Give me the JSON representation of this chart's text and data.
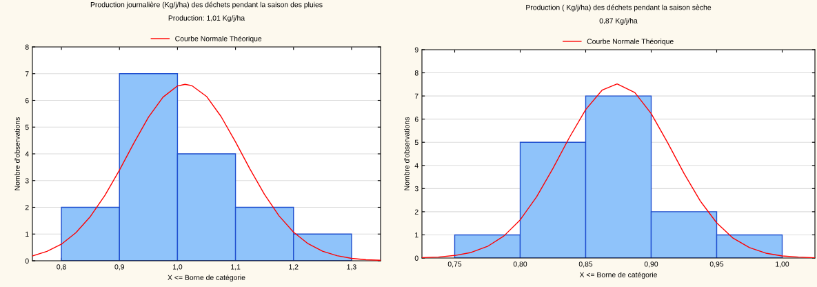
{
  "chart_data": [
    {
      "type": "histogram",
      "title": "Production journalière (Kg/j/ha) des déchets pendant la saison des pluies",
      "subtitle": "Production: 1,01 Kg/j/ha",
      "xlabel": "X <= Borne de catégorie",
      "ylabel": "Nombre d'observations",
      "bins": [
        0.8,
        0.9,
        1.0,
        1.1,
        1.2,
        1.3
      ],
      "values": [
        2,
        7,
        4,
        2,
        1
      ],
      "color": "#8fc3fa",
      "xlim": [
        0.75,
        1.35
      ],
      "xticks": [
        {
          "value": 0.8,
          "label": "0,8"
        },
        {
          "value": 0.9,
          "label": "0,9"
        },
        {
          "value": 1.0,
          "label": "1,0"
        },
        {
          "value": 1.1,
          "label": "1,1"
        },
        {
          "value": 1.2,
          "label": "1,2"
        },
        {
          "value": 1.3,
          "label": "1,3"
        }
      ],
      "ylim": [
        0,
        8
      ],
      "yticks": [
        0,
        1,
        2,
        3,
        4,
        5,
        6,
        7,
        8
      ],
      "grid": "y",
      "legend": "top",
      "series": [
        {
          "type": "line",
          "name": "Courbe Normale Théorique",
          "color": "#ff0000",
          "x": [
            0.75,
            0.775,
            0.8,
            0.825,
            0.85,
            0.875,
            0.9,
            0.925,
            0.95,
            0.975,
            1.0,
            1.013,
            1.025,
            1.05,
            1.075,
            1.1,
            1.125,
            1.15,
            1.175,
            1.2,
            1.225,
            1.25,
            1.275,
            1.3,
            1.325,
            1.35
          ],
          "values": [
            0.18,
            0.35,
            0.62,
            1.05,
            1.66,
            2.45,
            3.39,
            4.41,
            5.37,
            6.12,
            6.54,
            6.6,
            6.55,
            6.15,
            5.4,
            4.45,
            3.43,
            2.48,
            1.68,
            1.07,
            0.64,
            0.36,
            0.19,
            0.09,
            0.04,
            0.02
          ]
        }
      ]
    },
    {
      "type": "histogram",
      "title": "Production ( Kg/j/ha) des déchets pendant la saison sèche",
      "subtitle": "0,87 Kg/j/ha",
      "xlabel": "X <= Borne de catégorie",
      "ylabel": "Nombre d'observations",
      "bins": [
        0.75,
        0.8,
        0.85,
        0.9,
        0.95,
        1.0
      ],
      "values": [
        1,
        5,
        7,
        2,
        1
      ],
      "color": "#8fc3fa",
      "xlim": [
        0.725,
        1.025
      ],
      "xticks": [
        {
          "value": 0.75,
          "label": "0,75"
        },
        {
          "value": 0.8,
          "label": "0,80"
        },
        {
          "value": 0.85,
          "label": "0,85"
        },
        {
          "value": 0.9,
          "label": "0,90"
        },
        {
          "value": 0.95,
          "label": "0,95"
        },
        {
          "value": 1.0,
          "label": "1,00"
        }
      ],
      "ylim": [
        0,
        9
      ],
      "yticks": [
        0,
        1,
        2,
        3,
        4,
        5,
        6,
        7,
        8,
        9
      ],
      "grid": "y",
      "legend": "top",
      "series": [
        {
          "type": "line",
          "name": "Courbe Normale Théorique",
          "color": "#ff0000",
          "x": [
            0.725,
            0.7375,
            0.75,
            0.7625,
            0.775,
            0.7875,
            0.8,
            0.8125,
            0.825,
            0.8375,
            0.85,
            0.8625,
            0.874,
            0.8875,
            0.9,
            0.9125,
            0.925,
            0.9375,
            0.95,
            0.9625,
            0.975,
            0.9875,
            1.0,
            1.0125,
            1.025
          ],
          "values": [
            0.02,
            0.04,
            0.11,
            0.24,
            0.5,
            0.95,
            1.65,
            2.64,
            3.87,
            5.2,
            6.41,
            7.25,
            7.52,
            7.15,
            6.24,
            4.99,
            3.66,
            2.46,
            1.52,
            0.86,
            0.45,
            0.21,
            0.09,
            0.04,
            0.01
          ]
        }
      ]
    }
  ]
}
